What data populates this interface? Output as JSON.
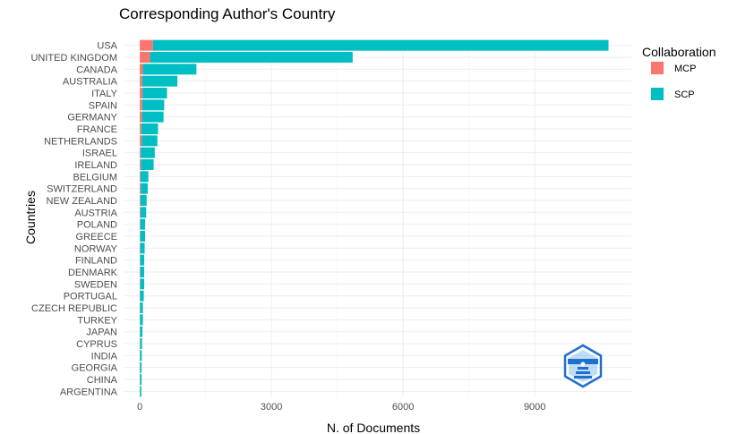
{
  "chart_data": {
    "type": "bar",
    "orientation": "horizontal",
    "stacked": true,
    "title": "Corresponding Author's Country",
    "xlabel": "N. of Documents",
    "ylabel": "Countries",
    "xlim": [
      -350,
      11200
    ],
    "xticks": [
      0,
      3000,
      6000,
      9000
    ],
    "grid": true,
    "legend": {
      "title": "Collaboration",
      "position": "right"
    },
    "categories": [
      "USA",
      "UNITED KINGDOM",
      "CANADA",
      "AUSTRALIA",
      "ITALY",
      "SPAIN",
      "GERMANY",
      "FRANCE",
      "NETHERLANDS",
      "ISRAEL",
      "IRELAND",
      "BELGIUM",
      "SWITZERLAND",
      "NEW ZEALAND",
      "AUSTRIA",
      "POLAND",
      "GREECE",
      "NORWAY",
      "FINLAND",
      "DENMARK",
      "SWEDEN",
      "PORTUGAL",
      "CZECH REPUBLIC",
      "TURKEY",
      "JAPAN",
      "CYPRUS",
      "INDIA",
      "GEORGIA",
      "CHINA",
      "ARGENTINA"
    ],
    "series": [
      {
        "name": "MCP",
        "color": "#F8766D",
        "values": [
          300,
          230,
          70,
          55,
          60,
          55,
          50,
          35,
          40,
          20,
          25,
          15,
          20,
          15,
          15,
          10,
          10,
          10,
          10,
          10,
          10,
          8,
          8,
          5,
          5,
          5,
          5,
          3,
          3,
          3
        ]
      },
      {
        "name": "SCP",
        "color": "#00BFC4",
        "values": [
          10380,
          4620,
          1220,
          800,
          560,
          500,
          490,
          380,
          360,
          320,
          290,
          180,
          160,
          140,
          130,
          110,
          110,
          100,
          90,
          90,
          90,
          82,
          62,
          65,
          55,
          45,
          40,
          37,
          37,
          32
        ]
      }
    ]
  },
  "watermark": {
    "name": "bibliometrix-logo-icon",
    "color": "#1f6fd1"
  }
}
